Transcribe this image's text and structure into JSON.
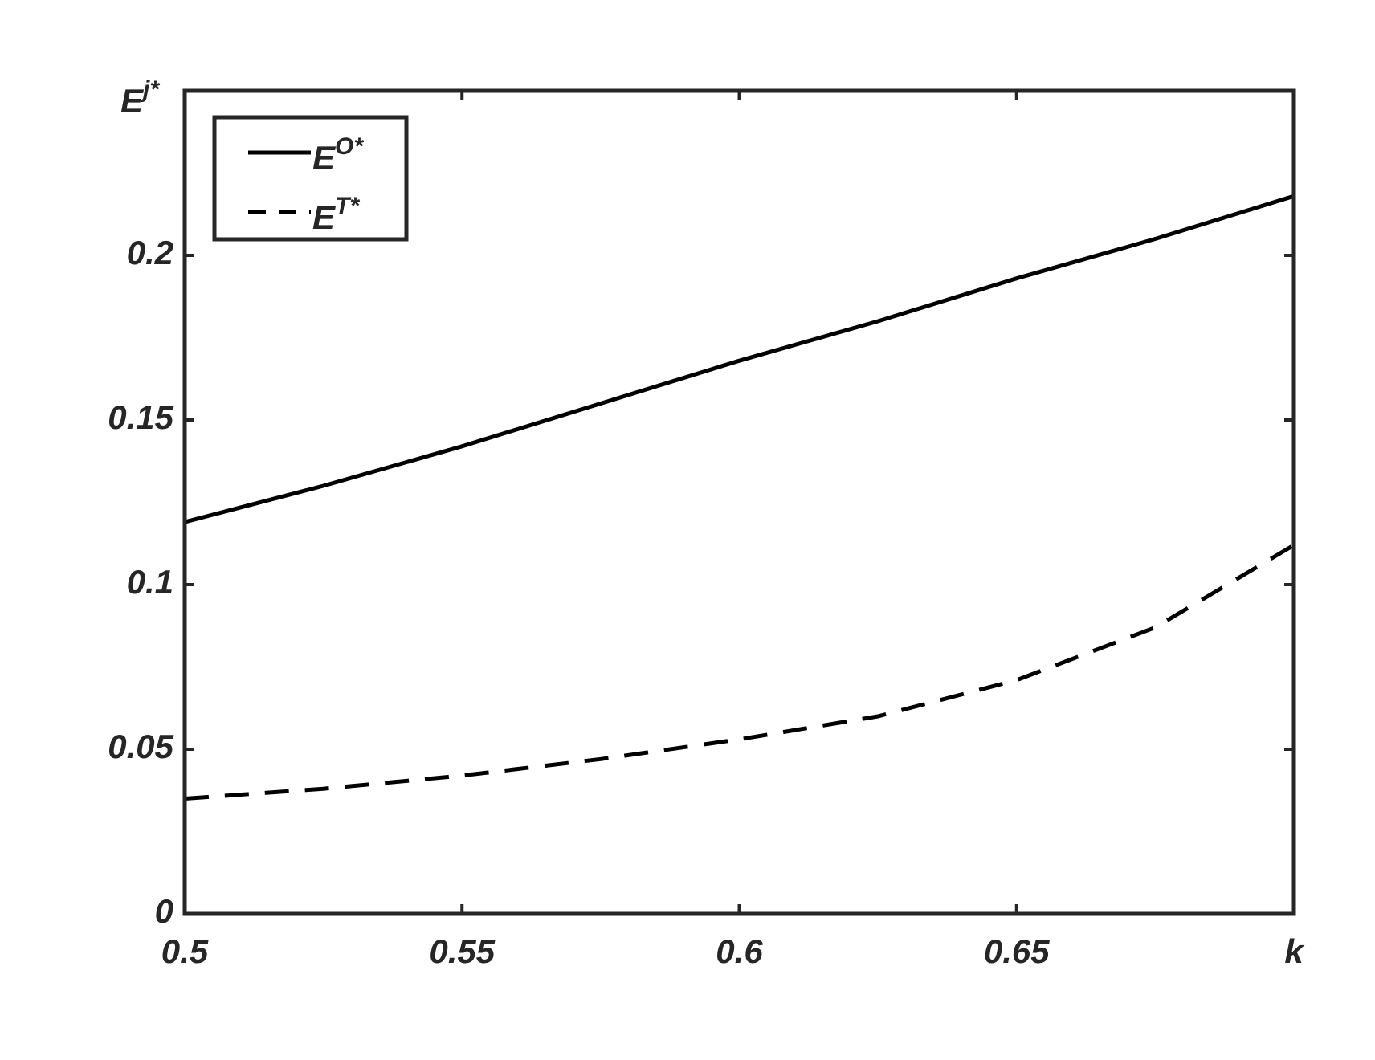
{
  "chart_data": {
    "type": "line",
    "x_label": "k",
    "y_label": "Ej*",
    "x": [
      0.5,
      0.525,
      0.55,
      0.575,
      0.6,
      0.625,
      0.65,
      0.675,
      0.7
    ],
    "series": [
      {
        "name": "EO*",
        "color": "#000000",
        "dash": "solid",
        "values": [
          0.119,
          0.13,
          0.142,
          0.155,
          0.168,
          0.18,
          0.193,
          0.205,
          0.218
        ]
      },
      {
        "name": "ET*",
        "color": "#000000",
        "dash": "dashed",
        "values": [
          0.035,
          0.038,
          0.042,
          0.047,
          0.053,
          0.06,
          0.071,
          0.087,
          0.112
        ]
      }
    ],
    "xlim": [
      0.5,
      0.7
    ],
    "xticks": [
      0.5,
      0.55,
      0.6,
      0.65
    ],
    "ylim": [
      0,
      0.25
    ],
    "yticks": [
      0,
      0.05,
      0.1,
      0.15,
      0.2
    ],
    "legend": "upper-left",
    "grid": false
  }
}
